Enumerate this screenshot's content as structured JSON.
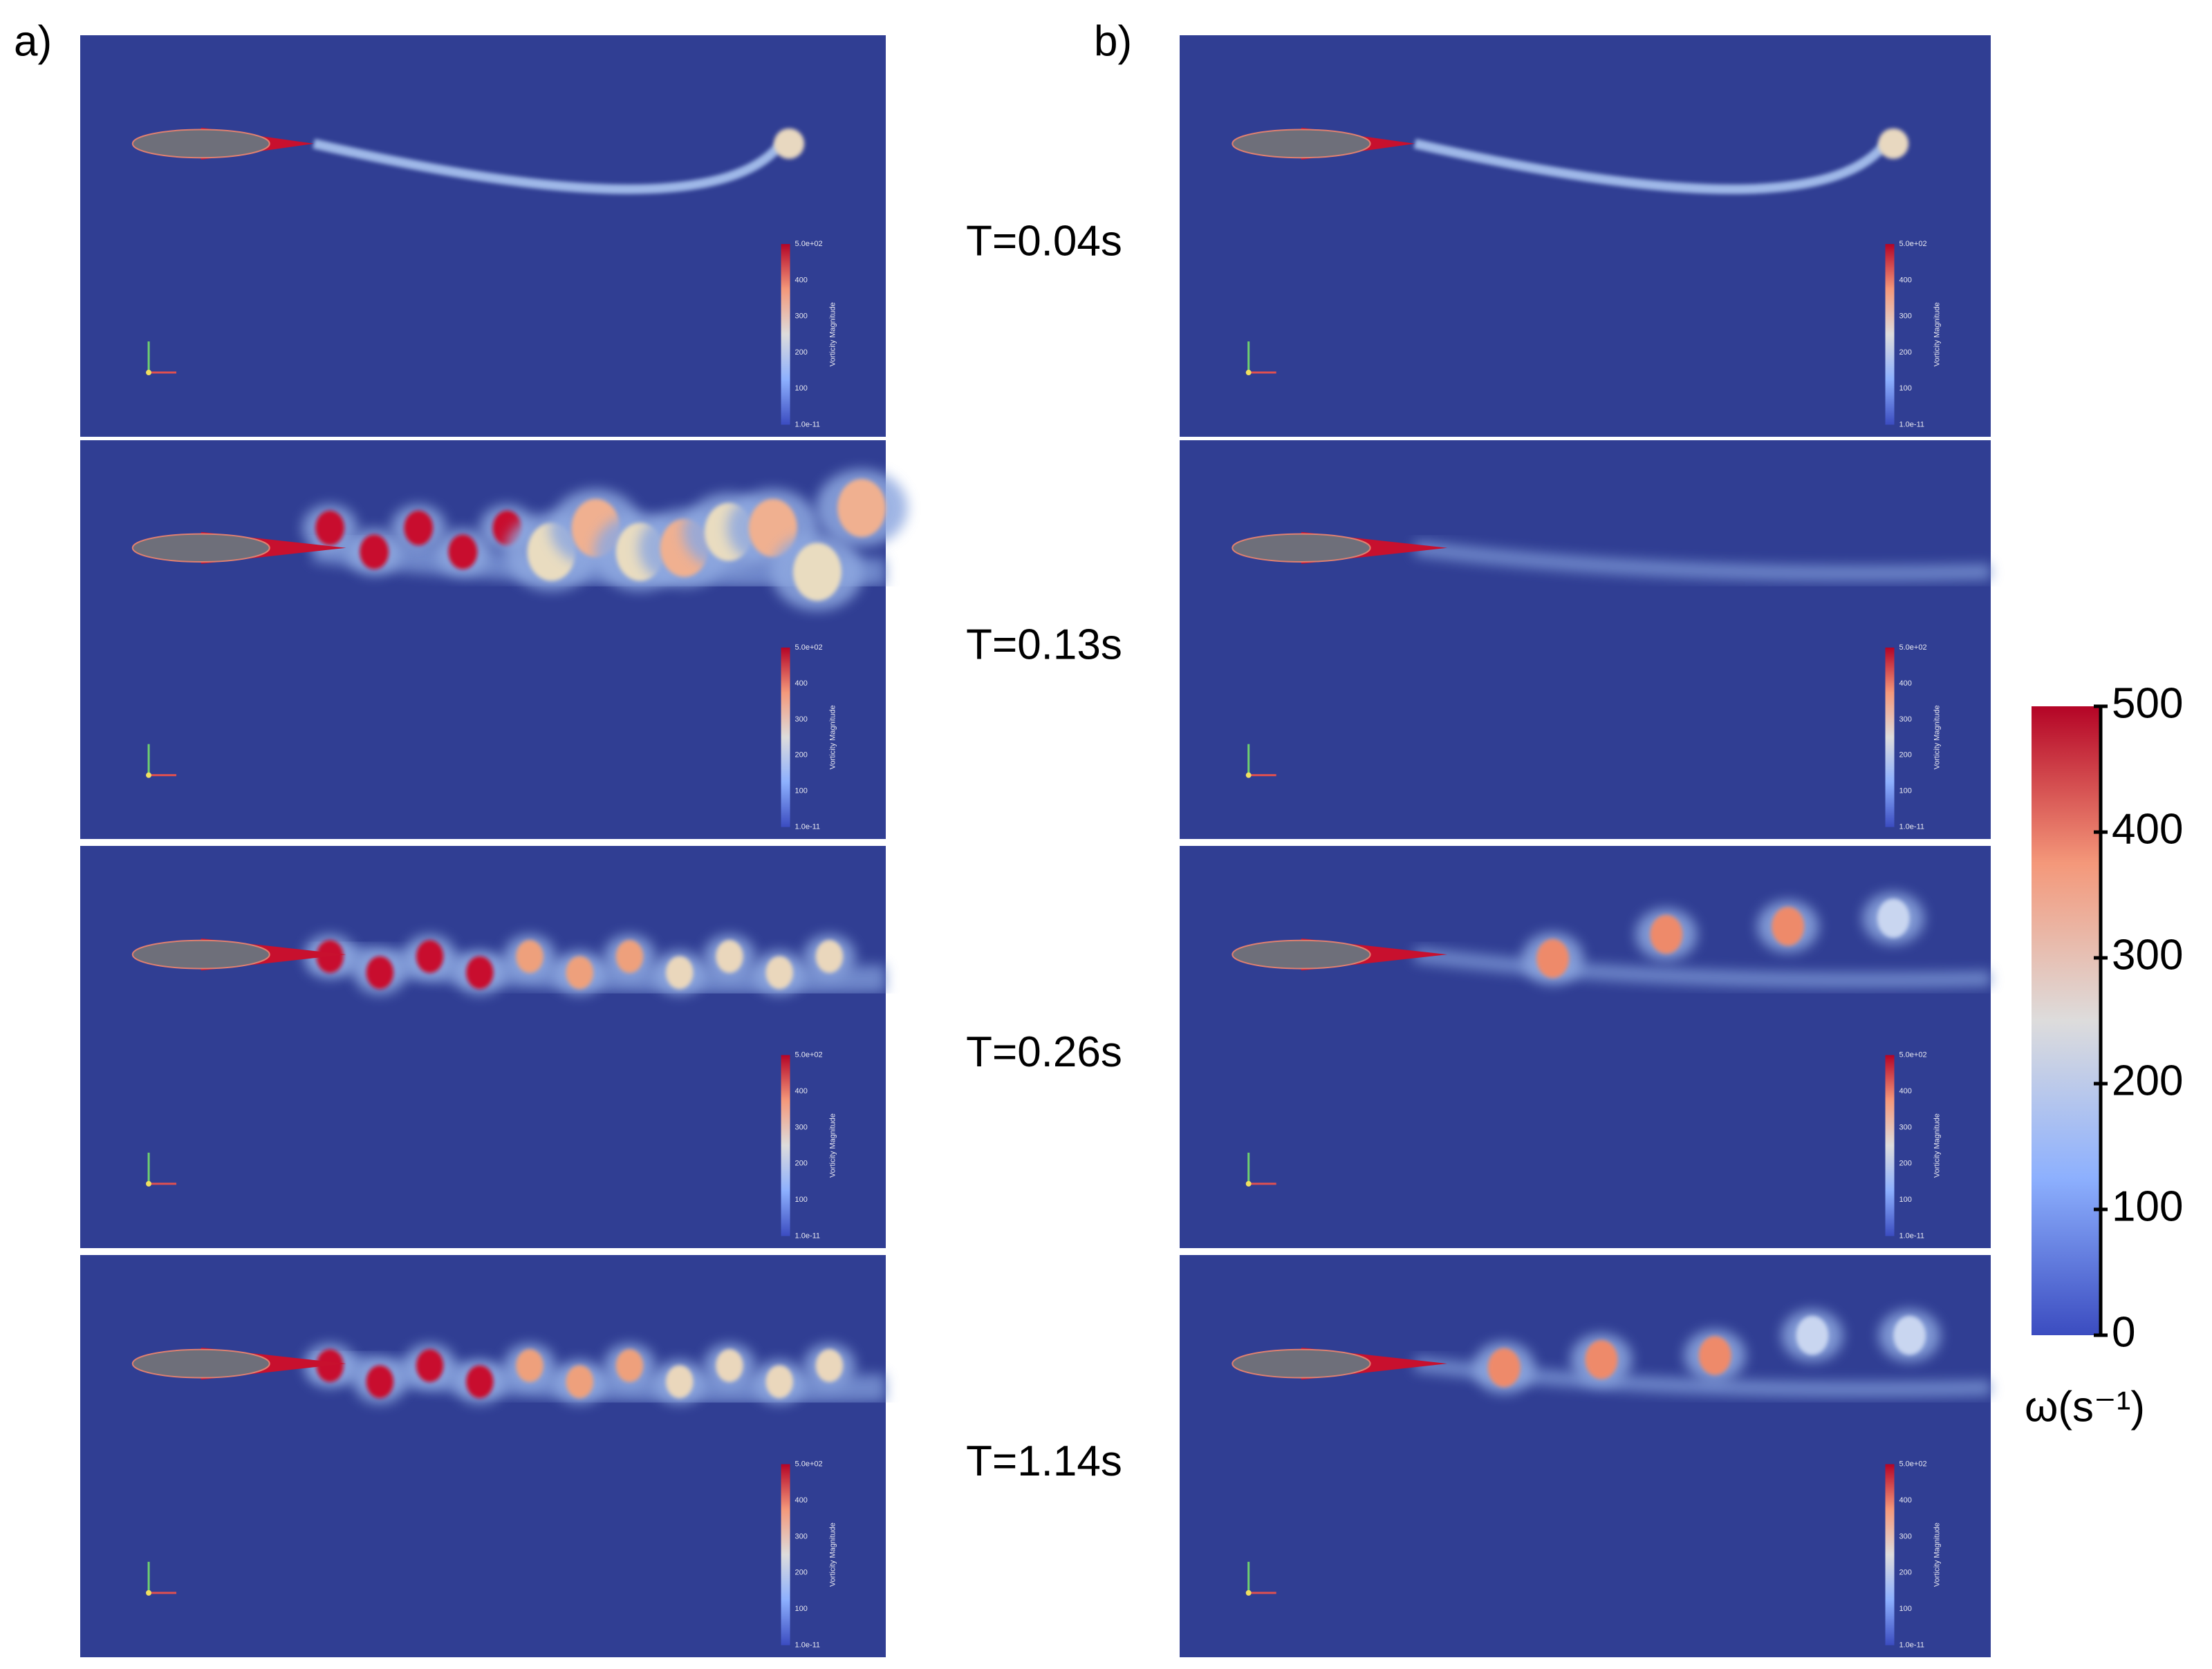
{
  "panels": [
    {
      "label": "a)"
    },
    {
      "label": "b)"
    }
  ],
  "time_labels": [
    "T=0.04s",
    "T=0.13s",
    "T=0.26s",
    "T=1.14s"
  ],
  "mini_legend": {
    "title": "Vorticity Magnitude",
    "ticks": [
      "5.0e+02",
      "400",
      "300",
      "200",
      "100",
      "1.0e-11"
    ]
  },
  "colorbar": {
    "lim": [
      0,
      500
    ],
    "ticks": [
      0,
      100,
      200,
      300,
      400,
      500
    ],
    "label": "ω(s⁻¹)"
  }
}
